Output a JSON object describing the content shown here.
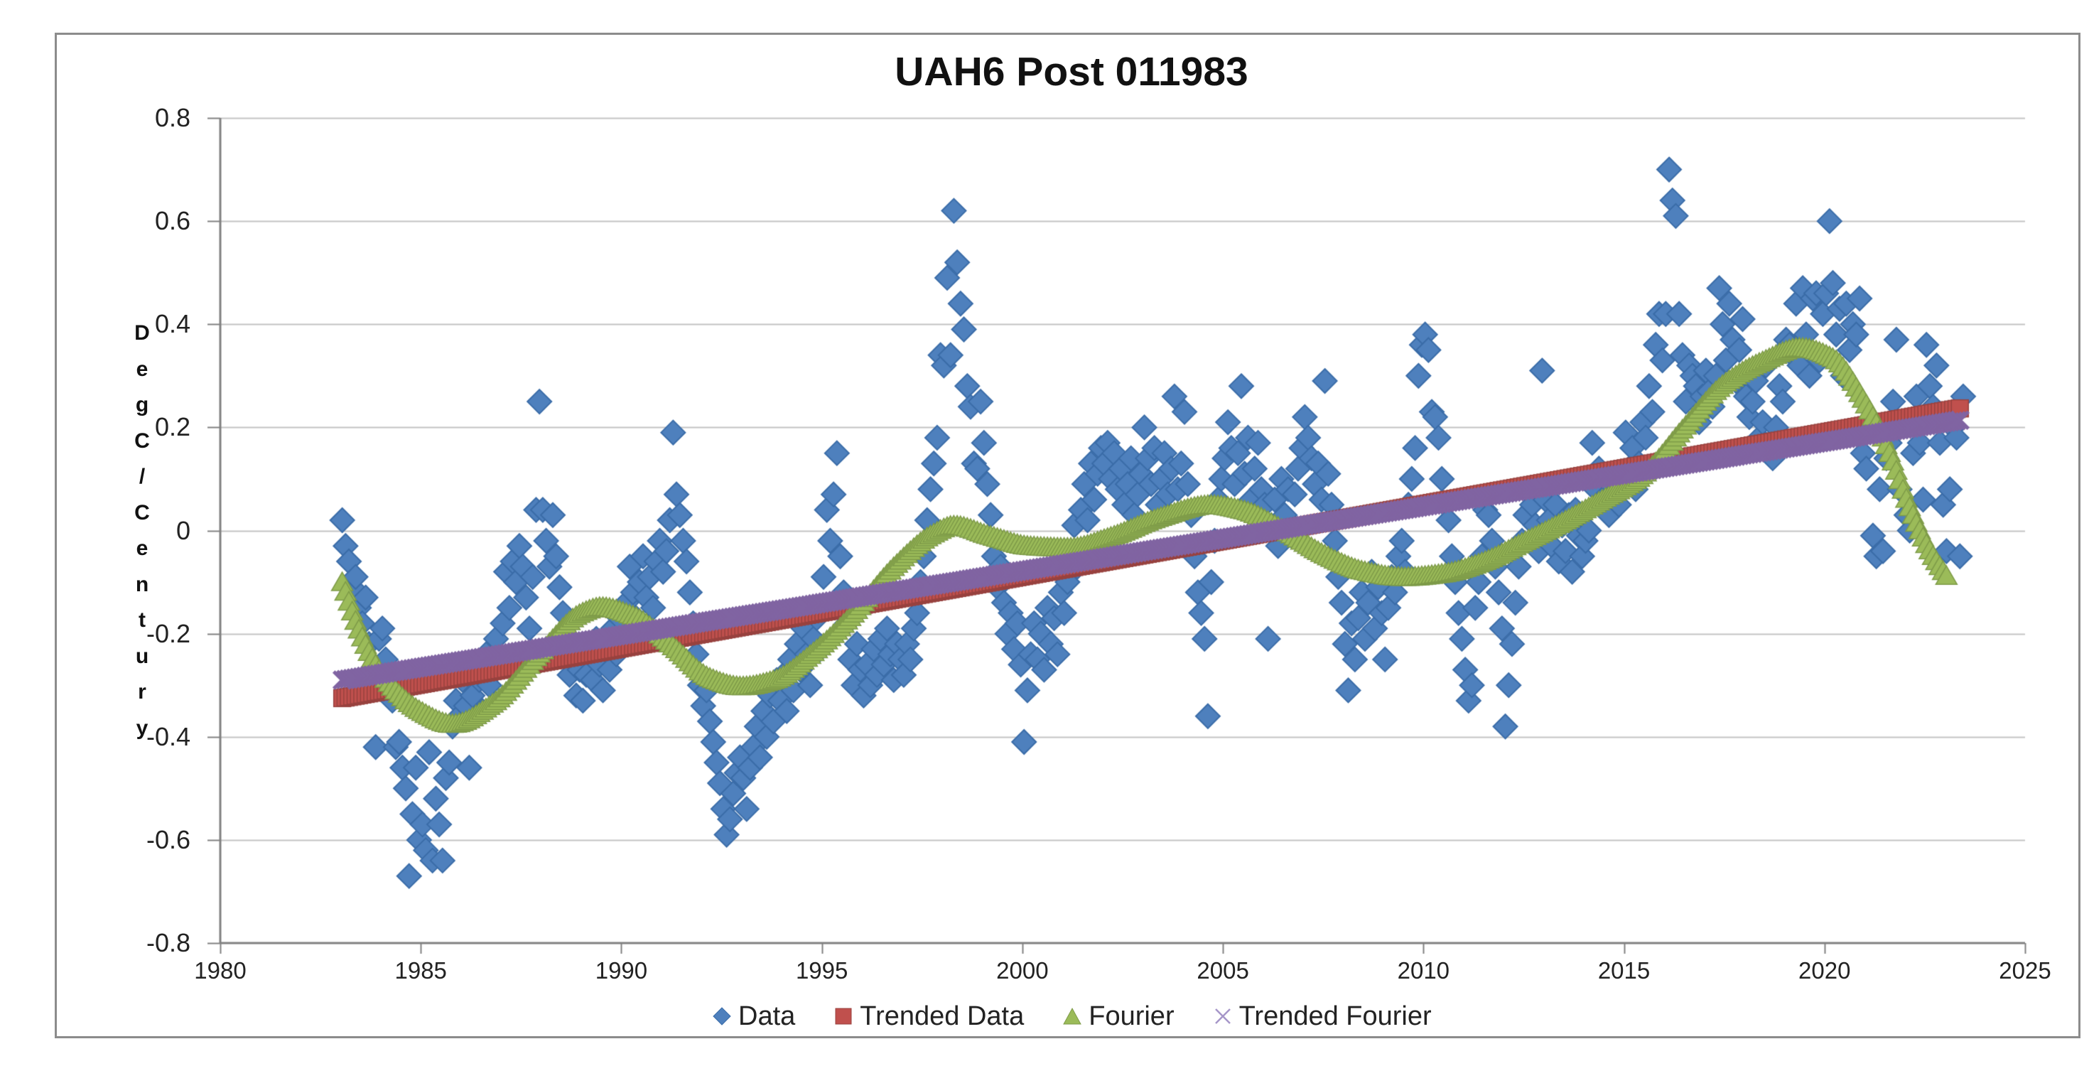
{
  "chart": {
    "title": "UAH6 Post 011983",
    "y_axis_label": "DegC/Century",
    "colors": {
      "data_fill": "#4E80BD",
      "data_edge": "#3A6CA8",
      "trended_data_fill": "#C0504D",
      "trended_data_edge": "#98423F",
      "fourier_fill": "#9BBB59",
      "fourier_edge": "#7E9B48",
      "trended_fourier": "#8064A2",
      "gridline": "#C3C3C3",
      "axis": "#808080",
      "legend_x_icon": "#A696C8"
    },
    "legend": [
      {
        "label": "Data",
        "marker": "diamond",
        "color": "#4E80BD"
      },
      {
        "label": "Trended Data",
        "marker": "square",
        "color": "#C0504D"
      },
      {
        "label": "Fourier",
        "marker": "triangle",
        "color": "#9BBB59"
      },
      {
        "label": "Trended Fourier",
        "marker": "x",
        "color": "#8064A2"
      }
    ]
  },
  "chart_data": {
    "type": "scatter",
    "title": "UAH6 Post 011983",
    "xlabel": "",
    "ylabel": "DegC/Century",
    "xlim": [
      1980,
      2025
    ],
    "ylim": [
      -0.8,
      0.8
    ],
    "x_ticks": [
      1980,
      1985,
      1990,
      1995,
      2000,
      2005,
      2010,
      2015,
      2020,
      2025
    ],
    "y_ticks": [
      0.8,
      0.6,
      0.4,
      0.2,
      0,
      -0.2,
      -0.4,
      -0.6,
      -0.8
    ],
    "y_tick_labels": [
      "0.8",
      "0.6",
      "0.4",
      "0.2",
      "0",
      "-0.2",
      "-0.4",
      "-0.6",
      "-0.8"
    ],
    "grid": "horizontal",
    "legend_position": "bottom",
    "series": [
      {
        "name": "Data",
        "kind": "scatter-monthly",
        "marker": "diamond",
        "monthly_values_by_year": {
          "1983": [
            0.02,
            -0.03,
            -0.06,
            -0.11,
            -0.09,
            -0.15,
            -0.18,
            -0.13,
            -0.22,
            -0.29,
            -0.42,
            -0.21
          ],
          "1984": [
            -0.19,
            -0.25,
            -0.31,
            -0.33,
            -0.42,
            -0.41,
            -0.46,
            -0.5,
            -0.67,
            -0.55,
            -0.46,
            -0.6
          ],
          "1985": [
            -0.57,
            -0.62,
            -0.43,
            -0.64,
            -0.52,
            -0.57,
            -0.64,
            -0.48,
            -0.45,
            -0.38,
            -0.33,
            -0.36
          ],
          "1986": [
            -0.29,
            -0.34,
            -0.46,
            -0.32,
            -0.26,
            -0.29,
            -0.35,
            -0.24,
            -0.3,
            -0.26,
            -0.21,
            -0.25
          ],
          "1987": [
            -0.18,
            -0.08,
            -0.15,
            -0.06,
            -0.1,
            -0.03,
            -0.07,
            -0.13,
            -0.19,
            -0.09,
            0.04,
            0.25
          ],
          "1988": [
            0.04,
            -0.02,
            -0.07,
            0.03,
            -0.05,
            -0.11,
            -0.16,
            -0.23,
            -0.28,
            -0.22,
            -0.32,
            -0.27
          ],
          "1989": [
            -0.33,
            -0.28,
            -0.24,
            -0.29,
            -0.21,
            -0.26,
            -0.31,
            -0.23,
            -0.27,
            -0.19,
            -0.24,
            -0.17
          ],
          "1990": [
            -0.21,
            -0.14,
            -0.07,
            -0.12,
            -0.17,
            -0.1,
            -0.05,
            -0.13,
            -0.09,
            -0.15,
            -0.06,
            -0.02
          ],
          "1991": [
            -0.08,
            -0.04,
            0.02,
            0.19,
            0.07,
            0.03,
            -0.02,
            -0.06,
            -0.12,
            -0.18,
            -0.24,
            -0.3
          ],
          "1992": [
            -0.34,
            -0.31,
            -0.37,
            -0.41,
            -0.45,
            -0.49,
            -0.54,
            -0.59,
            -0.56,
            -0.51,
            -0.47,
            -0.44
          ],
          "1993": [
            -0.48,
            -0.54,
            -0.46,
            -0.42,
            -0.38,
            -0.44,
            -0.35,
            -0.4,
            -0.32,
            -0.37,
            -0.29,
            -0.33
          ],
          "1994": [
            -0.28,
            -0.35,
            -0.25,
            -0.31,
            -0.22,
            -0.27,
            -0.19,
            -0.24,
            -0.3,
            -0.21,
            -0.17,
            -0.23
          ],
          "1995": [
            -0.09,
            0.04,
            -0.02,
            0.07,
            0.15,
            -0.05,
            -0.12,
            -0.18,
            -0.25,
            -0.3,
            -0.22,
            -0.27
          ],
          "1996": [
            -0.32,
            -0.26,
            -0.3,
            -0.23,
            -0.28,
            -0.21,
            -0.26,
            -0.19,
            -0.24,
            -0.29,
            -0.22,
            -0.25
          ],
          "1997": [
            -0.28,
            -0.22,
            -0.25,
            -0.19,
            -0.16,
            -0.1,
            -0.05,
            0.02,
            0.08,
            0.13,
            0.18,
            0.34
          ],
          "1998": [
            0.32,
            0.49,
            0.34,
            0.62,
            0.52,
            0.44,
            0.39,
            0.28,
            0.24,
            0.13,
            0.12,
            0.25
          ],
          "1999": [
            0.17,
            0.09,
            0.03,
            -0.05,
            -0.11,
            -0.07,
            -0.14,
            -0.2,
            -0.16,
            -0.23,
            -0.18,
            -0.26
          ],
          "2000": [
            -0.41,
            -0.31,
            -0.24,
            -0.18,
            -0.25,
            -0.2,
            -0.27,
            -0.15,
            -0.22,
            -0.17,
            -0.24,
            -0.12
          ],
          "2001": [
            -0.16,
            -0.1,
            -0.05,
            0.01,
            -0.07,
            0.04,
            0.09,
            0.02,
            0.13,
            0.06,
            0.11,
            0.16
          ],
          "2002": [
            0.13,
            0.17,
            0.1,
            0.15,
            0.08,
            0.12,
            0.05,
            0.09,
            0.14,
            0.03,
            0.07,
            0.11
          ],
          "2003": [
            0.2,
            0.14,
            0.09,
            0.16,
            0.05,
            0.1,
            0.15,
            0.07,
            0.12,
            0.26,
            0.08,
            0.13
          ],
          "2004": [
            0.23,
            0.09,
            0.03,
            -0.05,
            -0.12,
            -0.16,
            -0.21,
            -0.36,
            -0.1,
            -0.02,
            0.06,
            0.1
          ],
          "2005": [
            0.14,
            0.21,
            0.16,
            0.09,
            0.15,
            0.28,
            0.11,
            0.18,
            0.06,
            0.12,
            0.17,
            0.08
          ],
          "2006": [
            0.05,
            -0.21,
            0.01,
            0.06,
            -0.03,
            0.1,
            0.03,
            0.08,
            -0.01,
            0.07,
            0.12,
            0.16
          ],
          "2007": [
            0.22,
            0.18,
            0.14,
            0.09,
            0.13,
            0.06,
            0.29,
            0.11,
            0.05,
            -0.02,
            -0.09,
            -0.14
          ],
          "2008": [
            -0.22,
            -0.31,
            -0.18,
            -0.25,
            -0.17,
            -0.12,
            -0.21,
            -0.14,
            -0.08,
            -0.19,
            -0.11,
            -0.16
          ],
          "2009": [
            -0.25,
            -0.15,
            -0.09,
            -0.12,
            -0.05,
            -0.02,
            -0.08,
            0.05,
            0.1,
            0.16,
            0.3,
            0.36
          ],
          "2010": [
            0.38,
            0.35,
            0.23,
            0.22,
            0.18,
            0.1,
            0.05,
            0.02,
            -0.05,
            -0.1,
            -0.16,
            -0.21
          ],
          "2011": [
            -0.27,
            -0.33,
            -0.3,
            -0.15,
            -0.1,
            -0.05,
            0.04,
            0.03,
            -0.02,
            -0.07,
            -0.12,
            -0.19
          ],
          "2012": [
            -0.38,
            -0.3,
            -0.22,
            -0.14,
            -0.07,
            -0.02,
            0.03,
            0.08,
            0.05,
            0.01,
            -0.04,
            0.31
          ],
          "2013": [
            0.06,
            0.02,
            -0.03,
            0.05,
            -0.06,
            0.01,
            -0.04,
            0.03,
            -0.08,
            0.04,
            -0.01,
            -0.05
          ],
          "2014": [
            -0.02,
            0.0,
            0.17,
            0.08,
            0.12,
            0.06,
            0.1,
            0.03,
            0.07,
            0.11,
            0.05,
            0.09
          ],
          "2015": [
            0.19,
            0.12,
            0.16,
            0.08,
            0.13,
            0.21,
            0.18,
            0.28,
            0.23,
            0.36,
            0.42,
            0.33
          ],
          "2016": [
            0.42,
            0.7,
            0.64,
            0.61,
            0.42,
            0.34,
            0.25,
            0.32,
            0.3,
            0.28,
            0.21,
            0.26
          ],
          "2017": [
            0.31,
            0.27,
            0.24,
            0.3,
            0.47,
            0.4,
            0.33,
            0.44,
            0.37,
            0.29,
            0.35,
            0.41
          ],
          "2018": [
            0.26,
            0.22,
            0.25,
            0.29,
            0.18,
            0.21,
            0.32,
            0.15,
            0.14,
            0.2,
            0.28,
            0.25
          ],
          "2019": [
            0.37,
            0.36,
            0.34,
            0.44,
            0.32,
            0.47,
            0.38,
            0.3,
            0.45,
            0.46,
            0.33,
            0.42
          ],
          "2020": [
            0.46,
            0.6,
            0.48,
            0.38,
            0.43,
            0.3,
            0.44,
            0.35,
            0.4,
            0.38,
            0.45,
            0.15
          ],
          "2021": [
            0.12,
            0.2,
            -0.01,
            -0.05,
            0.08,
            -0.04,
            0.14,
            0.17,
            0.25,
            0.37,
            0.08,
            0.21
          ],
          "2022": [
            0.03,
            0.0,
            0.15,
            0.26,
            0.17,
            0.06,
            0.36,
            0.28,
            0.24,
            0.32,
            0.17,
            0.05
          ],
          "2023": [
            -0.04,
            0.08,
            0.2,
            0.18,
            -0.05,
            0.26
          ]
        }
      },
      {
        "name": "Trended Data",
        "kind": "linear-trend-squares",
        "marker": "square",
        "start": [
          1983.042,
          -0.325
        ],
        "end": [
          2023.458,
          0.238
        ]
      },
      {
        "name": "Fourier",
        "kind": "smooth-curve-triangles",
        "marker": "triangle",
        "control_points": [
          [
            1983.04,
            -0.1
          ],
          [
            1983.5,
            -0.2
          ],
          [
            1984.0,
            -0.275
          ],
          [
            1985.0,
            -0.35
          ],
          [
            1985.8,
            -0.375
          ],
          [
            1986.8,
            -0.335
          ],
          [
            1988.0,
            -0.235
          ],
          [
            1989.0,
            -0.16
          ],
          [
            1989.5,
            -0.148
          ],
          [
            1990.3,
            -0.165
          ],
          [
            1991.3,
            -0.225
          ],
          [
            1992.2,
            -0.285
          ],
          [
            1993.0,
            -0.302
          ],
          [
            1993.8,
            -0.29
          ],
          [
            1994.8,
            -0.235
          ],
          [
            1995.8,
            -0.16
          ],
          [
            1996.8,
            -0.07
          ],
          [
            1997.8,
            -0.005
          ],
          [
            1998.3,
            0.01
          ],
          [
            1999.2,
            -0.01
          ],
          [
            2000.2,
            -0.03
          ],
          [
            2001.2,
            -0.033
          ],
          [
            2002.2,
            -0.012
          ],
          [
            2003.4,
            0.025
          ],
          [
            2004.7,
            0.05
          ],
          [
            2005.5,
            0.04
          ],
          [
            2006.5,
            0.002
          ],
          [
            2007.5,
            -0.045
          ],
          [
            2008.5,
            -0.078
          ],
          [
            2009.5,
            -0.09
          ],
          [
            2010.5,
            -0.083
          ],
          [
            2011.5,
            -0.06
          ],
          [
            2012.5,
            -0.022
          ],
          [
            2013.5,
            0.018
          ],
          [
            2014.5,
            0.062
          ],
          [
            2015.5,
            0.11
          ],
          [
            2016.5,
            0.2
          ],
          [
            2017.5,
            0.285
          ],
          [
            2018.5,
            0.33
          ],
          [
            2019.4,
            0.355
          ],
          [
            2020.2,
            0.335
          ],
          [
            2021.0,
            0.25
          ],
          [
            2021.6,
            0.155
          ],
          [
            2022.1,
            0.05
          ],
          [
            2022.6,
            -0.035
          ],
          [
            2023.1,
            -0.095
          ]
        ]
      },
      {
        "name": "Trended Fourier",
        "kind": "linear-trend-x",
        "marker": "x",
        "start": [
          1983.042,
          -0.29
        ],
        "end": [
          2023.458,
          0.215
        ]
      }
    ]
  }
}
